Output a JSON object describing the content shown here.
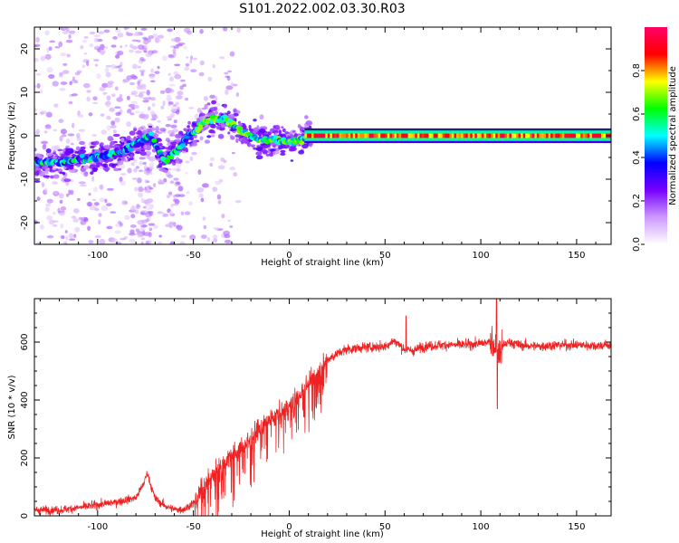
{
  "figure_title": "S101.2022.002.03.30.R03",
  "chart_data": [
    {
      "type": "heatmap",
      "title": "S101.2022.002.03.30.R03",
      "xlabel": "Height of straight line (km)",
      "ylabel": "Frequency (Hz)",
      "xlim": [
        -133,
        168
      ],
      "ylim": [
        -25,
        25
      ],
      "xticks": [
        -100,
        -50,
        0,
        50,
        100,
        150
      ],
      "yticks": [
        -20,
        -10,
        0,
        10,
        20
      ],
      "ridge": {
        "x": [
          -130,
          -115,
          -100,
          -90,
          -80,
          -72,
          -65,
          -58,
          -50,
          -45,
          -40,
          -35,
          -30,
          -25,
          -20,
          -15,
          -10,
          -5,
          0,
          5,
          10,
          168
        ],
        "frequency_hz": [
          -6,
          -6,
          -5,
          -4,
          -2,
          0,
          -6,
          -3,
          1,
          3,
          4,
          4,
          3,
          1,
          0,
          -1,
          -1,
          -1,
          -1.5,
          -1,
          0,
          0
        ]
      },
      "colorbar": {
        "label": "Normalized spectral amplitude",
        "range": [
          0,
          1
        ],
        "ticks": [
          "0.0",
          "0.2",
          "0.4",
          "0.6",
          "0.8"
        ],
        "colors": [
          "#ffffff",
          "#cc99ff",
          "#7700ff",
          "#0000ff",
          "#00ffff",
          "#00ff00",
          "#ffff00",
          "#ff0000",
          "#ff0066"
        ]
      }
    },
    {
      "type": "line",
      "xlabel": "Height of straight line (km)",
      "ylabel": "SNR (10 * v/v)",
      "xlim": [
        -133,
        168
      ],
      "ylim": [
        0,
        750
      ],
      "xticks": [
        -100,
        -50,
        0,
        50,
        100,
        150
      ],
      "yticks": [
        0,
        200,
        400,
        600
      ],
      "color": "#ee2222",
      "series": [
        {
          "name": "SNR",
          "x": [
            -133,
            -120,
            -110,
            -100,
            -90,
            -80,
            -76,
            -74,
            -72,
            -70,
            -65,
            -60,
            -55,
            -50,
            -45,
            -40,
            -35,
            -30,
            -25,
            -20,
            -15,
            -10,
            -5,
            0,
            5,
            10,
            15,
            20,
            25,
            30,
            40,
            50,
            55,
            60,
            65,
            70,
            80,
            90,
            100,
            105,
            108,
            110,
            112,
            115,
            120,
            130,
            140,
            150,
            160,
            168
          ],
          "y": [
            20,
            20,
            28,
            38,
            48,
            62,
            110,
            150,
            100,
            60,
            35,
            22,
            22,
            45,
            95,
            140,
            180,
            215,
            230,
            265,
            305,
            335,
            355,
            380,
            415,
            460,
            500,
            540,
            560,
            575,
            582,
            585,
            605,
            575,
            570,
            585,
            590,
            590,
            595,
            600,
            590,
            560,
            590,
            600,
            590,
            585,
            590,
            590,
            588,
            590
          ]
        }
      ],
      "annotations": [
        {
          "x": 108,
          "y": 750,
          "note": "spike"
        },
        {
          "x": 108,
          "y": 370,
          "note": "dip"
        }
      ]
    }
  ]
}
